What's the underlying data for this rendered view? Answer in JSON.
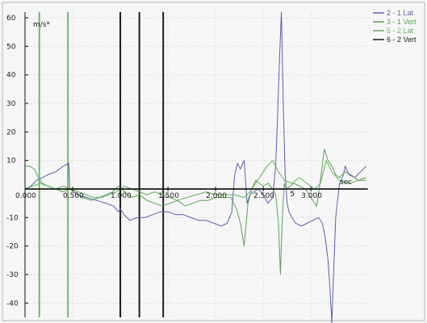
{
  "chart_data": {
    "type": "line",
    "title": "",
    "ylabel": "m/s*",
    "xlabel": "sec",
    "xlim": [
      0,
      3.6
    ],
    "ylim": [
      -45,
      62
    ],
    "grid": true,
    "legend_position": "top-right",
    "x_ticks": [
      "0.000",
      "0.500",
      "1.000",
      "1.500",
      "2.000",
      "2.500",
      "3.000"
    ],
    "y_ticks": [
      60,
      50,
      40,
      30,
      20,
      10,
      -10,
      -20,
      -30,
      -40
    ],
    "y_tick_labels": [
      "60",
      "50",
      "40",
      "30",
      "20",
      "10",
      "-10",
      "-20",
      "-30",
      "-40"
    ],
    "series": [
      {
        "name": "2 - 1 Lat",
        "color": "#5b5fb0",
        "x": [
          0.0,
          0.06,
          0.12,
          0.18,
          0.24,
          0.32,
          0.4,
          0.46,
          0.47,
          0.55,
          0.65,
          0.75,
          0.85,
          0.93,
          0.98,
          1.0,
          1.04,
          1.1,
          1.18,
          1.26,
          1.34,
          1.42,
          1.5,
          1.58,
          1.66,
          1.74,
          1.82,
          1.9,
          1.98,
          2.06,
          2.12,
          2.17,
          2.2,
          2.23,
          2.26,
          2.3,
          2.33,
          2.36,
          2.4,
          2.45,
          2.5,
          2.55,
          2.6,
          2.63,
          2.65,
          2.67,
          2.69,
          2.71,
          2.73,
          2.75,
          2.77,
          2.8,
          2.84,
          2.9,
          2.96,
          3.02,
          3.08,
          3.12,
          3.15,
          3.18,
          3.2,
          3.22,
          3.24,
          3.26,
          3.28,
          3.3,
          3.32,
          3.34,
          3.36,
          3.4,
          3.46,
          3.52,
          3.58
        ],
        "y": [
          0,
          1,
          3,
          4,
          5,
          6,
          8,
          9,
          0,
          -2,
          -3,
          -4,
          -5,
          -6,
          -8,
          -7,
          -9,
          -11,
          -10,
          -10,
          -9,
          -8,
          -8,
          -9,
          -9,
          -10,
          -11,
          -11,
          -12,
          -13,
          -12,
          -8,
          5,
          9,
          7,
          10,
          -5,
          -2,
          -1,
          0,
          -2,
          -5,
          -3,
          8,
          25,
          45,
          62,
          30,
          5,
          -5,
          -8,
          -10,
          -12,
          -13,
          -12,
          -11,
          -10,
          -12,
          -17,
          -25,
          -35,
          -47,
          -28,
          -10,
          -4,
          2,
          3,
          5,
          8,
          5,
          4,
          6,
          8
        ]
      },
      {
        "name": "3 - 1 Vert",
        "color": "#59a352",
        "x": [
          0.0,
          0.05,
          0.1,
          0.14,
          0.18,
          0.24,
          0.32,
          0.4,
          0.46,
          0.52,
          0.6,
          0.7,
          0.78,
          0.85,
          0.92,
          0.98,
          1.05,
          1.12,
          1.2,
          1.28,
          1.36,
          1.44,
          1.52,
          1.6,
          1.68,
          1.76,
          1.84,
          1.92,
          2.0,
          2.08,
          2.16,
          2.22,
          2.26,
          2.3,
          2.34,
          2.38,
          2.42,
          2.46,
          2.5,
          2.55,
          2.6,
          2.63,
          2.66,
          2.68,
          2.7,
          2.72,
          2.74,
          2.78,
          2.82,
          2.88,
          2.94,
          3.0,
          3.06,
          3.1,
          3.14,
          3.18,
          3.22,
          3.26,
          3.3,
          3.36,
          3.42,
          3.5,
          3.58
        ],
        "y": [
          8,
          8,
          7,
          4,
          2,
          1,
          0,
          -1,
          0,
          -1,
          -3,
          -4,
          -3,
          -2,
          -1,
          1,
          -1,
          -3,
          -2,
          -4,
          -5,
          -6,
          -5,
          -4,
          -6,
          -5,
          -4,
          -4,
          -3,
          -3,
          -3,
          -7,
          -12,
          -20,
          -5,
          0,
          3,
          2,
          1,
          2,
          0,
          -2,
          -12,
          -30,
          -10,
          2,
          0,
          1,
          2,
          1,
          0,
          -3,
          -6,
          3,
          14,
          10,
          8,
          5,
          4,
          6,
          5,
          3,
          4
        ]
      },
      {
        "name": "5 - 2 Lat",
        "color": "#63b05c",
        "x": [
          0.0,
          0.08,
          0.16,
          0.24,
          0.32,
          0.4,
          0.48,
          0.56,
          0.64,
          0.72,
          0.8,
          0.88,
          0.96,
          1.04,
          1.12,
          1.2,
          1.28,
          1.36,
          1.44,
          1.52,
          1.6,
          1.7,
          1.8,
          1.9,
          2.0,
          2.1,
          2.2,
          2.3,
          2.36,
          2.42,
          2.48,
          2.54,
          2.6,
          2.66,
          2.72,
          2.8,
          2.88,
          2.96,
          3.04,
          3.1,
          3.16,
          3.22,
          3.3,
          3.4,
          3.5,
          3.58
        ],
        "y": [
          0,
          1,
          2,
          1,
          0,
          1,
          0,
          -1,
          -2,
          -3,
          -3,
          -2,
          -1,
          1,
          0,
          -1,
          -2,
          -1,
          -2,
          -3,
          -4,
          -3,
          -2,
          -1,
          -2,
          -2,
          -2,
          -3,
          -1,
          2,
          5,
          8,
          10,
          6,
          3,
          2,
          4,
          2,
          0,
          2,
          10,
          6,
          3,
          2,
          3,
          3
        ]
      },
      {
        "name": "6 - 2 Vert",
        "color": "#1a1a1a",
        "x": [
          0.0,
          3.58
        ],
        "y": [
          0,
          0
        ]
      }
    ],
    "markers": [
      {
        "color": "#6fb868",
        "x": 0.15
      },
      {
        "color": "#6fb868",
        "x": 0.45
      },
      {
        "color": "#1a1a1a",
        "x": 1.0
      },
      {
        "color": "#1a1a1a",
        "x": 1.2
      },
      {
        "color": "#1a1a1a",
        "x": 1.45
      }
    ],
    "annotations": [
      {
        "text": "5",
        "x": 2.78,
        "y": -2.5
      }
    ]
  }
}
